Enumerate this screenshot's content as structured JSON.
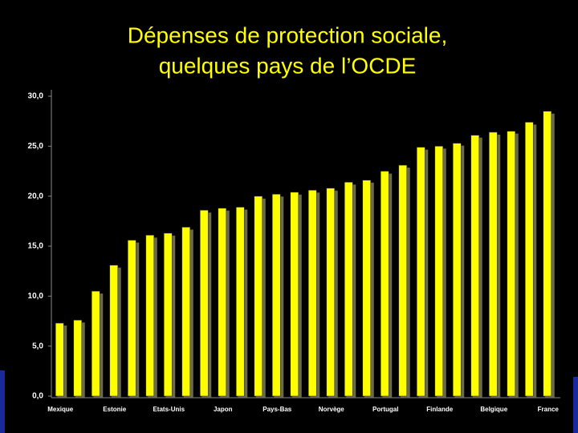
{
  "chart_data": {
    "type": "bar",
    "title": [
      "Dépenses de protection sociale,",
      "quelques pays de l’OCDE"
    ],
    "categories": [
      "Mexique",
      null,
      null,
      "Estonie",
      null,
      null,
      "Etats-Unis",
      null,
      null,
      "Japon",
      null,
      null,
      "Pays-Bas",
      null,
      null,
      "Norvège",
      null,
      null,
      "Portugal",
      null,
      null,
      "Finlande",
      null,
      null,
      "Belgique",
      null,
      null,
      "France"
    ],
    "values": [
      7.3,
      7.6,
      10.5,
      13.1,
      15.6,
      16.1,
      16.3,
      16.9,
      18.6,
      18.8,
      18.9,
      20.0,
      20.2,
      20.4,
      20.6,
      20.8,
      21.4,
      21.6,
      22.5,
      23.1,
      24.9,
      25.0,
      25.3,
      26.1,
      26.4,
      26.5,
      27.4,
      28.5
    ],
    "color": "#ffff00",
    "ylim": [
      0,
      30
    ],
    "yticks": [
      {
        "value": 0,
        "label": "0,0"
      },
      {
        "value": 5,
        "label": "5,0"
      },
      {
        "value": 10,
        "label": "10,0"
      },
      {
        "value": 15,
        "label": "15,0"
      },
      {
        "value": 20,
        "label": "20,0"
      },
      {
        "value": 25,
        "label": "25,0"
      },
      {
        "value": 30,
        "label": "30,0"
      }
    ]
  }
}
